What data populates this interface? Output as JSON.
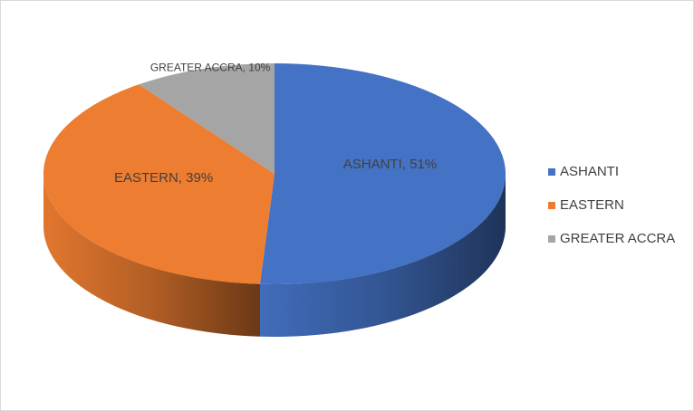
{
  "chart_data": {
    "type": "pie3d",
    "categories": [
      "ASHANTI",
      "EASTERN",
      "GREATER ACCRA"
    ],
    "values": [
      51,
      39,
      10
    ],
    "value_labels": [
      "ASHANTI, 51%",
      "EASTERN, 39%",
      "GREATER ACCRA, 10%"
    ],
    "colors": [
      "#4472c4",
      "#ed7d31",
      "#a5a5a5"
    ],
    "legend": "right"
  }
}
